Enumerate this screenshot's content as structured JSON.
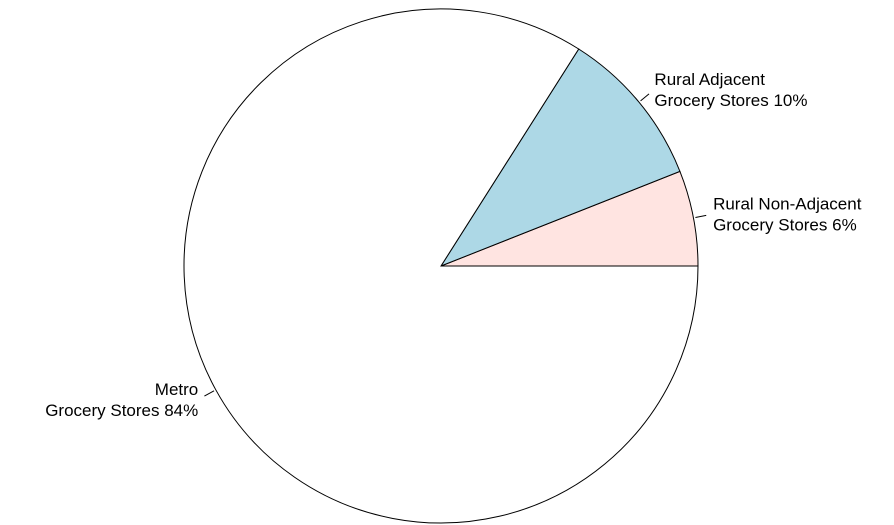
{
  "chart_data": {
    "type": "pie",
    "start_angle_deg": 0,
    "direction": "counterclockwise",
    "slices": [
      {
        "label_lines": [
          "Rural Non-Adjacent",
          "Grocery Stores 6%"
        ],
        "value": 6,
        "color": "#FFE4E1"
      },
      {
        "label_lines": [
          "Rural Adjacent",
          "Grocery Stores 10%"
        ],
        "value": 10,
        "color": "#ADD8E6"
      },
      {
        "label_lines": [
          "Metro",
          "Grocery Stores 84%"
        ],
        "value": 84,
        "color": "#FFFFFF"
      }
    ]
  }
}
